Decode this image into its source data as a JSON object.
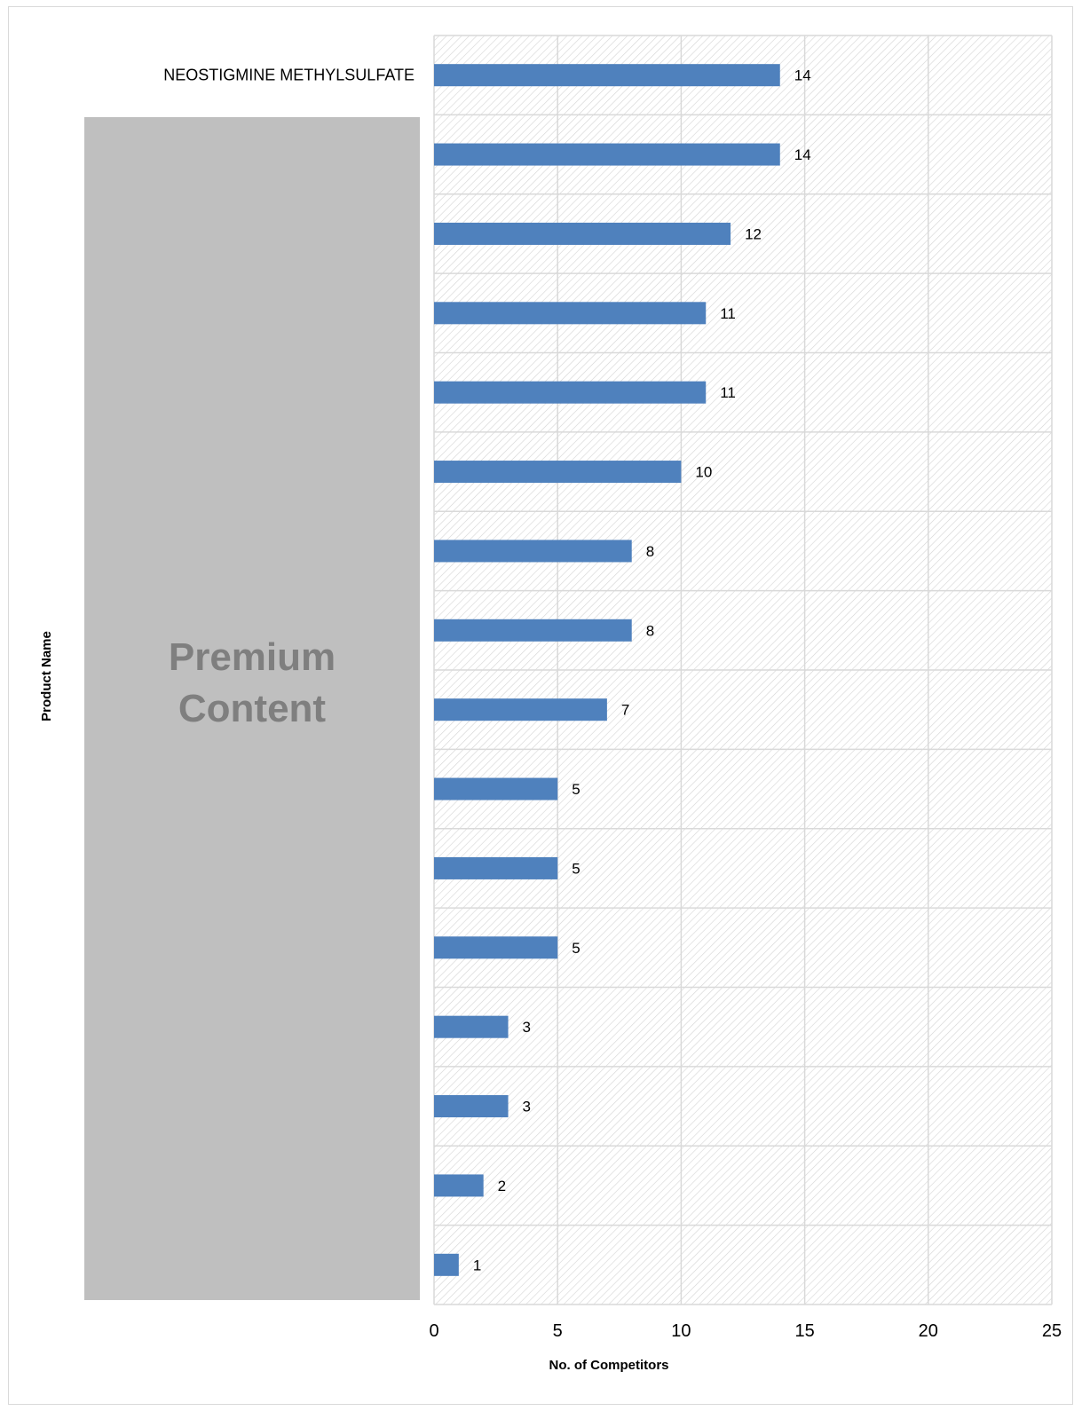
{
  "chart_data": {
    "type": "bar",
    "orientation": "horizontal",
    "categories": [
      "NEOSTIGMINE METHYLSULFATE",
      "",
      "",
      "",
      "",
      "",
      "",
      "",
      "",
      "",
      "",
      "",
      "",
      "",
      "",
      ""
    ],
    "values": [
      14,
      14,
      12,
      11,
      11,
      10,
      8,
      8,
      7,
      5,
      5,
      5,
      3,
      3,
      2,
      1
    ],
    "xlabel": "No. of Competitors",
    "ylabel": "Product Name",
    "xlim": [
      0,
      25
    ],
    "xticks": [
      0,
      5,
      10,
      15,
      20,
      25
    ],
    "grid": true,
    "bar_color": "#4f81bd"
  },
  "overlay": {
    "line1": "Premium",
    "line2": "Content",
    "background": "#bfbfbf",
    "text_color": "#7f7f7f"
  }
}
